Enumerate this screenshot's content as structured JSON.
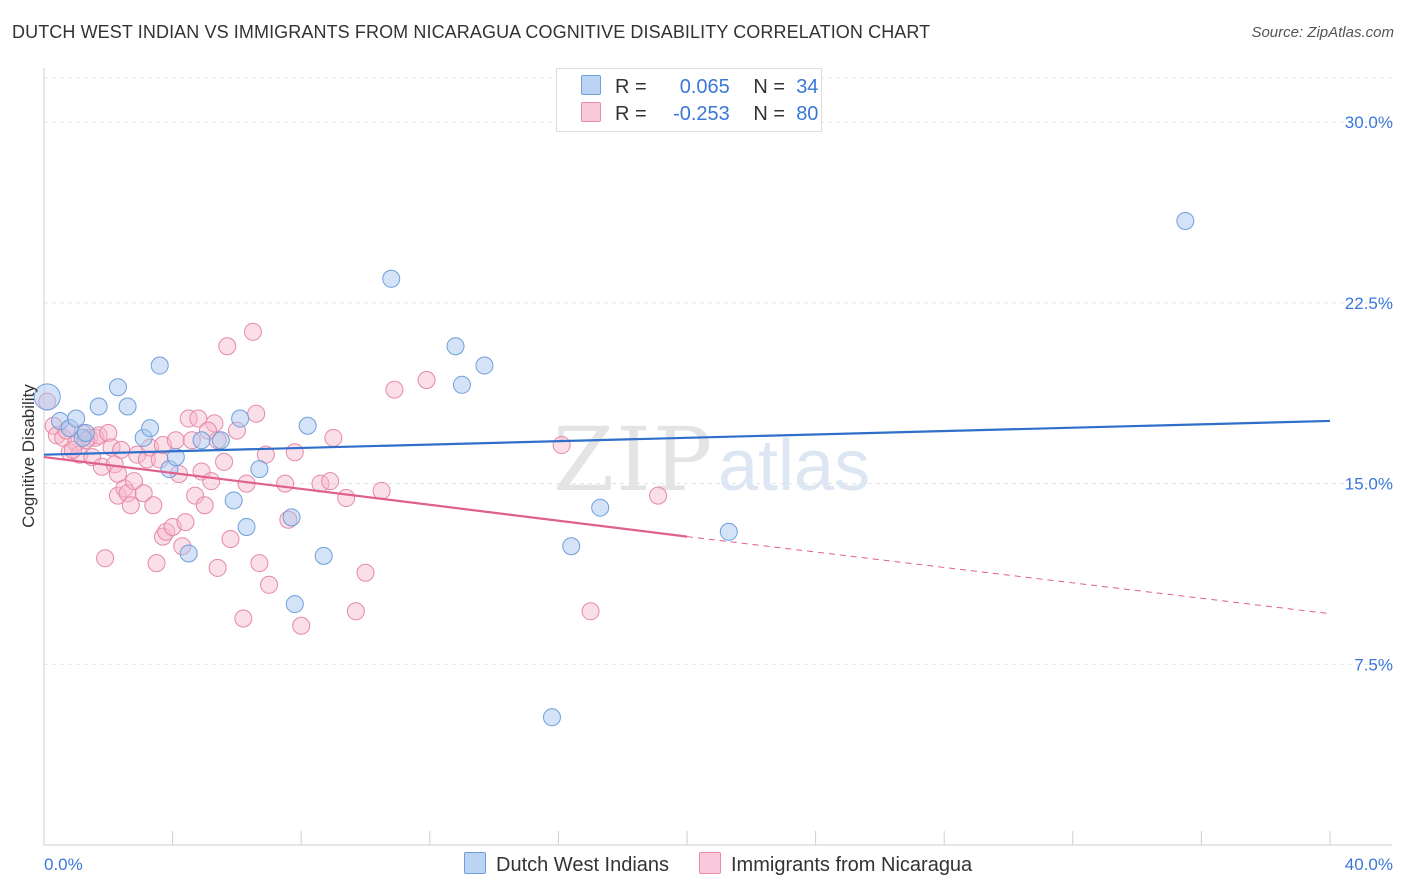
{
  "header": {
    "title": "DUTCH WEST INDIAN VS IMMIGRANTS FROM NICARAGUA COGNITIVE DISABILITY CORRELATION CHART",
    "source": "Source: ZipAtlas.com"
  },
  "watermark": {
    "zip": "ZIP",
    "atlas": "atlas"
  },
  "legend": {
    "rows": [
      {
        "r_label": "R =",
        "r_value": "0.065",
        "n_label": "N =",
        "n_value": "34"
      },
      {
        "r_label": "R =",
        "r_value": "-0.253",
        "n_label": "N =",
        "n_value": "80"
      }
    ]
  },
  "colors": {
    "blue_fill": "#a9c8f0",
    "blue_stroke": "#6f9fd9",
    "blue_line": "#2f6fca",
    "pink_fill": "#f6b8cc",
    "pink_stroke": "#e58aa8",
    "pink_line": "#e0608c",
    "tick_label": "#3a78d8",
    "grid": "#e3e3e3"
  },
  "chart_data": {
    "type": "scatter",
    "title": "DUTCH WEST INDIAN VS IMMIGRANTS FROM NICARAGUA COGNITIVE DISABILITY CORRELATION CHART",
    "xlabel": "",
    "ylabel": "Cognitive Disability",
    "xlim": [
      0,
      40
    ],
    "ylim": [
      0,
      32
    ],
    "x_tick_labels": [
      "0.0%",
      "40.0%"
    ],
    "y_ticks": [
      7.5,
      15.0,
      22.5,
      30.0
    ],
    "y_tick_labels": [
      "7.5%",
      "15.0%",
      "22.5%",
      "30.0%"
    ],
    "grid": true,
    "legend_position": "top-center",
    "series": [
      {
        "name": "Dutch West Indians",
        "color": "#a9c8f0",
        "points": [
          [
            0.1,
            18.6
          ],
          [
            0.5,
            17.6
          ],
          [
            0.8,
            17.3
          ],
          [
            1.0,
            17.7
          ],
          [
            1.2,
            16.9
          ],
          [
            1.3,
            17.1
          ],
          [
            1.7,
            18.2
          ],
          [
            2.3,
            19.0
          ],
          [
            2.6,
            18.2
          ],
          [
            3.1,
            16.9
          ],
          [
            3.3,
            17.3
          ],
          [
            3.6,
            19.9
          ],
          [
            3.9,
            15.6
          ],
          [
            4.1,
            16.1
          ],
          [
            4.5,
            12.1
          ],
          [
            4.9,
            16.8
          ],
          [
            5.5,
            16.8
          ],
          [
            5.9,
            14.3
          ],
          [
            6.1,
            17.7
          ],
          [
            6.3,
            13.2
          ],
          [
            6.7,
            15.6
          ],
          [
            7.7,
            13.6
          ],
          [
            7.8,
            10.0
          ],
          [
            8.2,
            17.4
          ],
          [
            8.7,
            12.0
          ],
          [
            10.8,
            23.5
          ],
          [
            12.8,
            20.7
          ],
          [
            13.0,
            19.1
          ],
          [
            13.7,
            19.9
          ],
          [
            15.8,
            5.3
          ],
          [
            16.4,
            12.4
          ],
          [
            17.3,
            14.0
          ],
          [
            21.3,
            13.0
          ],
          [
            35.5,
            25.9
          ]
        ]
      },
      {
        "name": "Immigrants from Nicaragua",
        "color": "#f6b8cc",
        "points": [
          [
            0.1,
            18.4
          ],
          [
            0.3,
            17.4
          ],
          [
            0.4,
            17.0
          ],
          [
            0.6,
            16.9
          ],
          [
            0.7,
            17.2
          ],
          [
            0.8,
            16.3
          ],
          [
            1.0,
            16.7
          ],
          [
            1.1,
            16.2
          ],
          [
            1.2,
            17.1
          ],
          [
            1.4,
            16.9
          ],
          [
            1.5,
            16.1
          ],
          [
            1.6,
            16.9
          ],
          [
            1.7,
            17.0
          ],
          [
            1.8,
            15.7
          ],
          [
            1.9,
            11.9
          ],
          [
            2.0,
            17.1
          ],
          [
            2.1,
            16.5
          ],
          [
            2.2,
            15.8
          ],
          [
            2.3,
            15.4
          ],
          [
            2.3,
            14.5
          ],
          [
            2.5,
            14.8
          ],
          [
            2.6,
            14.6
          ],
          [
            2.7,
            14.1
          ],
          [
            2.8,
            15.1
          ],
          [
            2.9,
            16.2
          ],
          [
            3.1,
            14.6
          ],
          [
            3.2,
            16.0
          ],
          [
            3.3,
            16.5
          ],
          [
            3.4,
            14.1
          ],
          [
            3.5,
            11.7
          ],
          [
            3.6,
            16.0
          ],
          [
            3.7,
            16.6
          ],
          [
            3.7,
            12.8
          ],
          [
            3.8,
            13.0
          ],
          [
            4.0,
            13.2
          ],
          [
            4.1,
            16.8
          ],
          [
            4.2,
            15.4
          ],
          [
            4.3,
            12.4
          ],
          [
            4.4,
            13.4
          ],
          [
            4.5,
            17.7
          ],
          [
            4.6,
            16.8
          ],
          [
            4.7,
            14.5
          ],
          [
            4.8,
            17.7
          ],
          [
            4.9,
            15.5
          ],
          [
            5.0,
            14.1
          ],
          [
            5.2,
            15.1
          ],
          [
            5.3,
            17.5
          ],
          [
            5.4,
            16.8
          ],
          [
            5.4,
            11.5
          ],
          [
            5.6,
            15.9
          ],
          [
            5.7,
            20.7
          ],
          [
            5.8,
            12.7
          ],
          [
            6.0,
            17.2
          ],
          [
            6.2,
            9.4
          ],
          [
            6.3,
            15.0
          ],
          [
            6.5,
            21.3
          ],
          [
            6.6,
            17.9
          ],
          [
            6.7,
            11.7
          ],
          [
            6.9,
            16.2
          ],
          [
            7.0,
            10.8
          ],
          [
            7.5,
            15.0
          ],
          [
            7.6,
            13.5
          ],
          [
            7.8,
            16.3
          ],
          [
            8.0,
            9.1
          ],
          [
            8.6,
            15.0
          ],
          [
            8.9,
            15.1
          ],
          [
            9.0,
            16.9
          ],
          [
            9.4,
            14.4
          ],
          [
            9.7,
            9.7
          ],
          [
            10.0,
            11.3
          ],
          [
            10.5,
            14.7
          ],
          [
            10.9,
            18.9
          ],
          [
            11.9,
            19.3
          ],
          [
            16.1,
            16.6
          ],
          [
            17.0,
            9.7
          ],
          [
            19.1,
            14.5
          ],
          [
            5.1,
            17.2
          ],
          [
            2.4,
            16.4
          ],
          [
            1.3,
            16.8
          ],
          [
            0.9,
            16.4
          ]
        ]
      }
    ],
    "trendlines": [
      {
        "series": "Dutch West Indians",
        "x": [
          0,
          40
        ],
        "y": [
          16.2,
          17.6
        ],
        "style": "solid"
      },
      {
        "series": "Immigrants from Nicaragua",
        "x": [
          0,
          20
        ],
        "y": [
          16.1,
          12.8
        ],
        "style": "solid"
      },
      {
        "series": "Immigrants from Nicaragua",
        "x": [
          20,
          40
        ],
        "y": [
          12.8,
          9.6
        ],
        "style": "dashed"
      }
    ]
  }
}
